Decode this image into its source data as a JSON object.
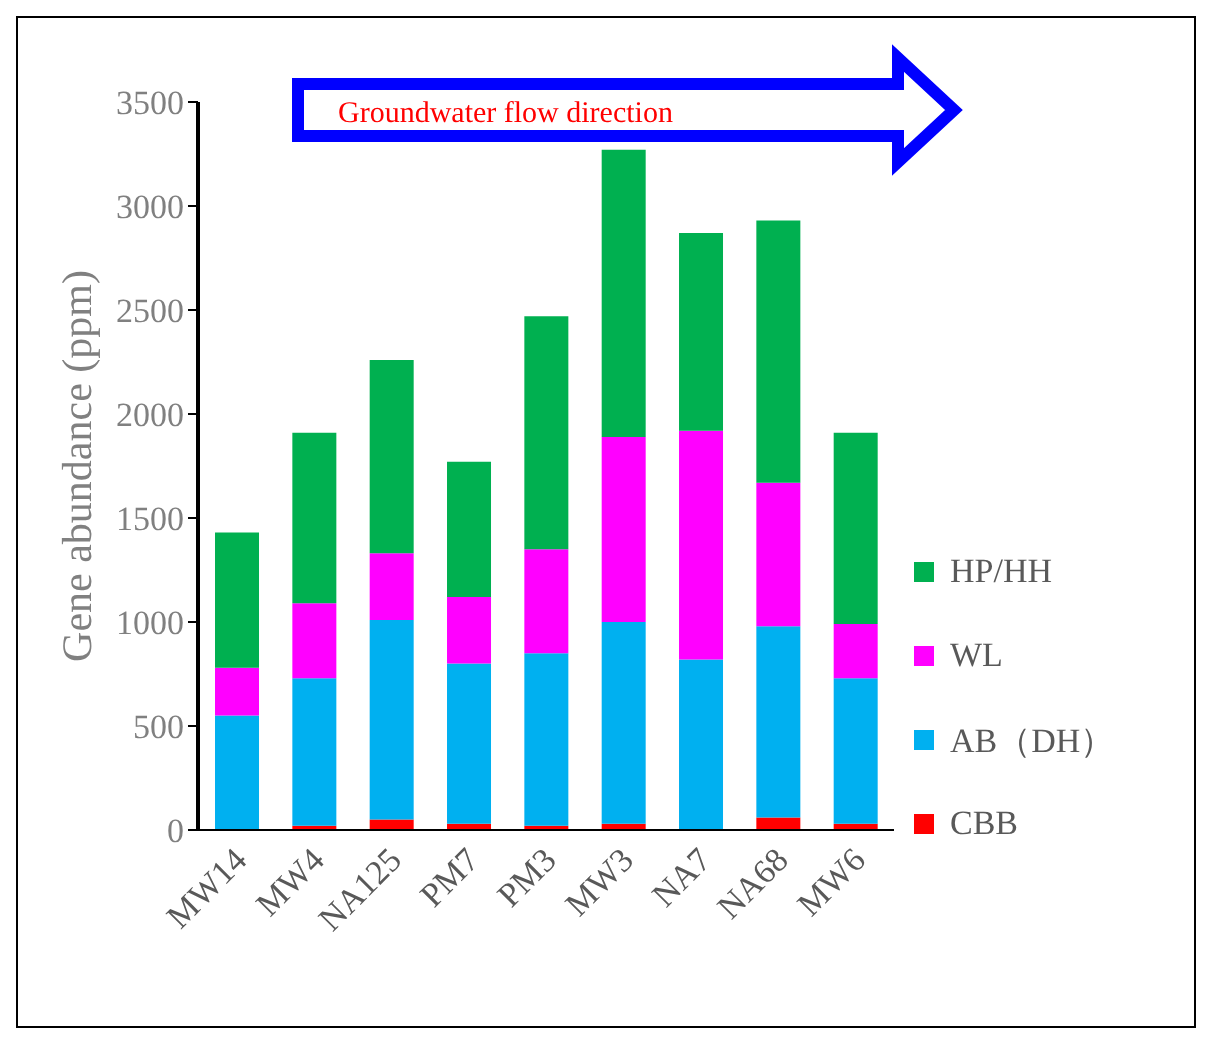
{
  "chart_data": {
    "type": "bar",
    "stacked": true,
    "categories": [
      "MW14",
      "MW4",
      "NA125",
      "PM7",
      "PM3",
      "MW3",
      "NA7",
      "NA68",
      "MW6"
    ],
    "series": [
      {
        "name": "CBB",
        "color": "#ff0000",
        "values": [
          null,
          20,
          50,
          30,
          20,
          30,
          0,
          60,
          30
        ]
      },
      {
        "name": "AB（DH）",
        "color": "#00b0f0",
        "values": [
          550,
          710,
          960,
          770,
          830,
          970,
          820,
          920,
          700
        ]
      },
      {
        "name": "WL",
        "color": "#ff00ff",
        "values": [
          230,
          360,
          320,
          320,
          500,
          890,
          1100,
          690,
          260
        ]
      },
      {
        "name": "HP/HH",
        "color": "#00b050",
        "values": [
          650,
          820,
          930,
          650,
          1120,
          1380,
          950,
          1260,
          920
        ]
      }
    ],
    "ylabel": "Gene abundance (ppm)",
    "ylim": [
      0,
      3500
    ],
    "yticks": [
      0,
      500,
      1000,
      1500,
      2000,
      2500,
      3000,
      3500
    ],
    "legend": "right",
    "annotations": [
      "Groundwater flow direction"
    ]
  }
}
